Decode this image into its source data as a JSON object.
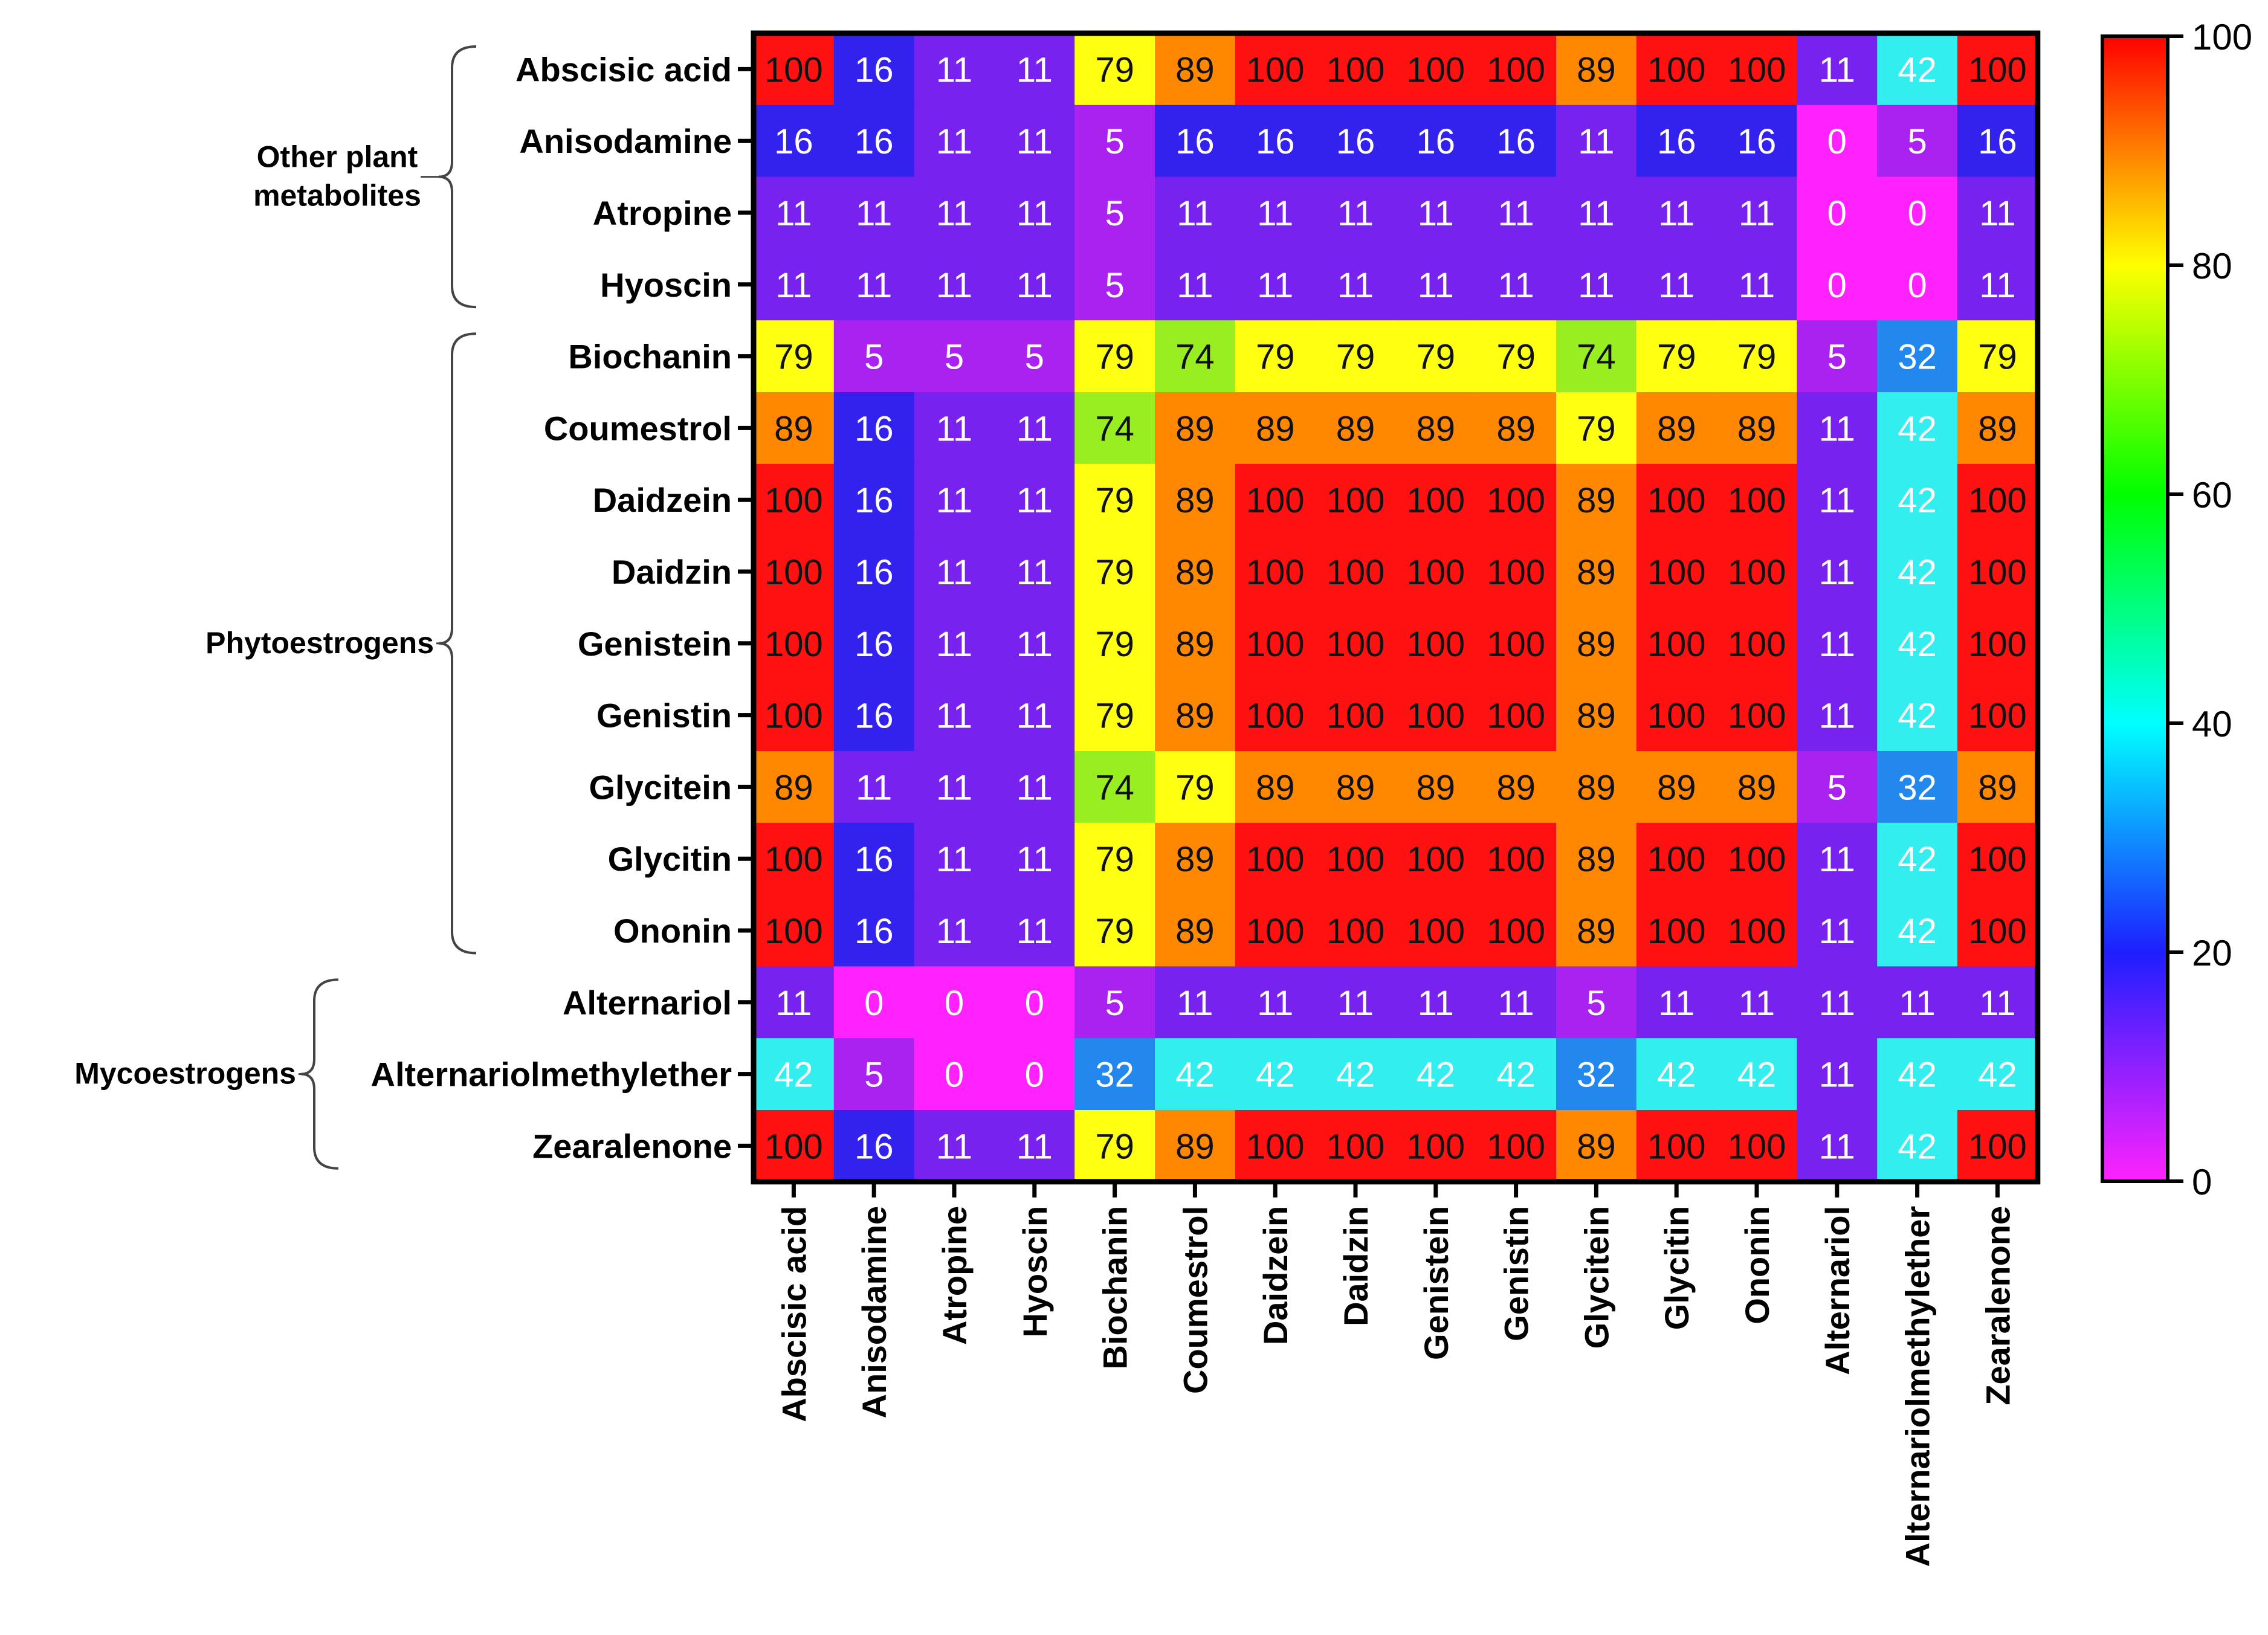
{
  "chart_data": {
    "type": "heatmap",
    "title": "",
    "xlabel": "",
    "ylabel": "",
    "row_labels": [
      "Abscisic acid",
      "Anisodamine",
      "Atropine",
      "Hyoscin",
      "Biochanin",
      "Coumestrol",
      "Daidzein",
      "Daidzin",
      "Genistein",
      "Genistin",
      "Glycitein",
      "Glycitin",
      "Ononin",
      "Alternariol",
      "Alternariolmethylether",
      "Zearalenone"
    ],
    "col_labels": [
      "Abscisic acid",
      "Anisodamine",
      "Atropine",
      "Hyoscin",
      "Biochanin",
      "Coumestrol",
      "Daidzein",
      "Daidzin",
      "Genistein",
      "Genistin",
      "Glycitein",
      "Glycitin",
      "Ononin",
      "Alternariol",
      "Alternariolmethylether",
      "Zearalenone"
    ],
    "values": [
      [
        100,
        16,
        11,
        11,
        79,
        89,
        100,
        100,
        100,
        100,
        89,
        100,
        100,
        11,
        42,
        100
      ],
      [
        16,
        16,
        11,
        11,
        5,
        16,
        16,
        16,
        16,
        16,
        11,
        16,
        16,
        0,
        5,
        16
      ],
      [
        11,
        11,
        11,
        11,
        5,
        11,
        11,
        11,
        11,
        11,
        11,
        11,
        11,
        0,
        0,
        11
      ],
      [
        11,
        11,
        11,
        11,
        5,
        11,
        11,
        11,
        11,
        11,
        11,
        11,
        11,
        0,
        0,
        11
      ],
      [
        79,
        5,
        5,
        5,
        79,
        74,
        79,
        79,
        79,
        79,
        74,
        79,
        79,
        5,
        32,
        79
      ],
      [
        89,
        16,
        11,
        11,
        74,
        89,
        89,
        89,
        89,
        89,
        79,
        89,
        89,
        11,
        42,
        89
      ],
      [
        100,
        16,
        11,
        11,
        79,
        89,
        100,
        100,
        100,
        100,
        89,
        100,
        100,
        11,
        42,
        100
      ],
      [
        100,
        16,
        11,
        11,
        79,
        89,
        100,
        100,
        100,
        100,
        89,
        100,
        100,
        11,
        42,
        100
      ],
      [
        100,
        16,
        11,
        11,
        79,
        89,
        100,
        100,
        100,
        100,
        89,
        100,
        100,
        11,
        42,
        100
      ],
      [
        100,
        16,
        11,
        11,
        79,
        89,
        100,
        100,
        100,
        100,
        89,
        100,
        100,
        11,
        42,
        100
      ],
      [
        89,
        11,
        11,
        11,
        74,
        79,
        89,
        89,
        89,
        89,
        89,
        89,
        89,
        5,
        32,
        89
      ],
      [
        100,
        16,
        11,
        11,
        79,
        89,
        100,
        100,
        100,
        100,
        89,
        100,
        100,
        11,
        42,
        100
      ],
      [
        100,
        16,
        11,
        11,
        79,
        89,
        100,
        100,
        100,
        100,
        89,
        100,
        100,
        11,
        42,
        100
      ],
      [
        11,
        0,
        0,
        0,
        5,
        11,
        11,
        11,
        11,
        11,
        5,
        11,
        11,
        11,
        11,
        11
      ],
      [
        42,
        5,
        0,
        0,
        32,
        42,
        42,
        42,
        42,
        42,
        32,
        42,
        42,
        11,
        42,
        42
      ],
      [
        100,
        16,
        11,
        11,
        79,
        89,
        100,
        100,
        100,
        100,
        89,
        100,
        100,
        11,
        42,
        100
      ]
    ],
    "groups": [
      {
        "label": "Other plant\nmetabolites",
        "rows": [
          0,
          3
        ]
      },
      {
        "label": "Phytoestrogens",
        "rows": [
          4,
          12
        ]
      },
      {
        "label": "Mycoestrogens",
        "rows": [
          13,
          15
        ]
      }
    ],
    "colorbar": {
      "range": [
        0,
        100
      ],
      "ticks": [
        0,
        20,
        40,
        60,
        80,
        100
      ],
      "tick_labels": [
        "0",
        "20",
        "40",
        "60",
        "80",
        "100"
      ]
    },
    "color_map": {
      "0": "#ff22ff",
      "5": "#aa22f0",
      "11": "#7722ee",
      "16": "#3322ee",
      "32": "#2288ee",
      "42": "#33eeee",
      "74": "#99ee22",
      "79": "#ffff11",
      "89": "#ff8800",
      "100": "#ff1111"
    },
    "colorbar_stops": [
      "#ff22ff",
      "#1e1eff",
      "#00ffff",
      "#00ff00",
      "#ffff00",
      "#ff0000"
    ]
  }
}
